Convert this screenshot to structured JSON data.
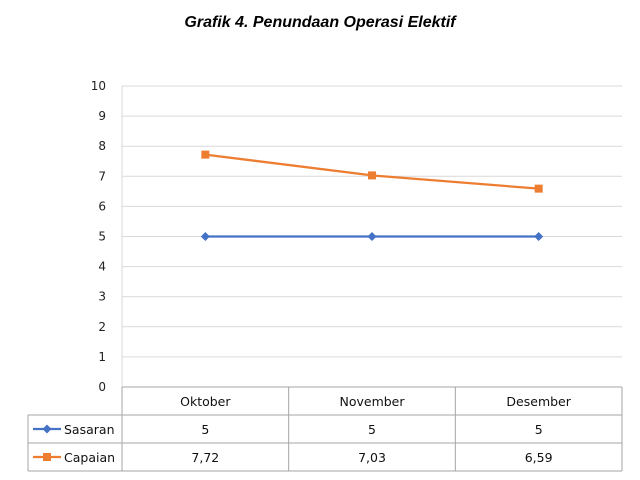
{
  "chart_data": {
    "type": "line",
    "title": "Grafik 4. Penundaan Operasi Elektif",
    "categories": [
      "Oktober",
      "November",
      "Desember"
    ],
    "series": [
      {
        "name": "Sasaran",
        "values": [
          5,
          5,
          5
        ],
        "value_labels": [
          "5",
          "5",
          "5"
        ],
        "color": "#4472C4",
        "marker": "diamond"
      },
      {
        "name": "Capaian",
        "values": [
          7.72,
          7.03,
          6.59
        ],
        "value_labels": [
          "7,72",
          "7,03",
          "6,59"
        ],
        "color": "#ED7D31",
        "marker": "square"
      }
    ],
    "ylim": [
      0,
      10
    ],
    "yticks": [
      0,
      1,
      2,
      3,
      4,
      5,
      6,
      7,
      8,
      9,
      10
    ],
    "grid": true,
    "legend": "data-table-below",
    "xlabel": "",
    "ylabel": ""
  }
}
